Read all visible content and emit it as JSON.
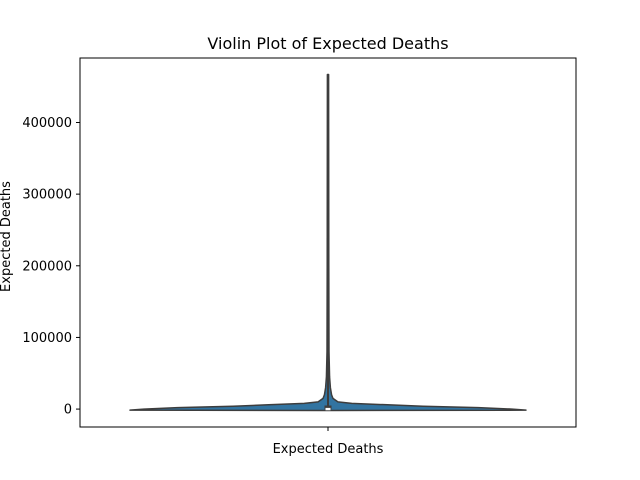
{
  "chart_data": {
    "type": "violin",
    "title": "Violin Plot of Expected Deaths",
    "xlabel": "",
    "ylabel": "Expected Deaths",
    "categories": [
      "Expected Deaths"
    ],
    "ylim": [
      -25000,
      490000
    ],
    "yticks": [
      0,
      100000,
      200000,
      300000,
      400000
    ],
    "ytick_labels": [
      "0",
      "100000",
      "200000",
      "300000",
      "400000"
    ],
    "grid": false,
    "series": [
      {
        "category": "Expected Deaths",
        "min": -1000,
        "q1": -500,
        "median": 0,
        "q3": 5000,
        "max": 467000,
        "density_profile": [
          {
            "y": -1500,
            "w": 1.0
          },
          {
            "y": 0,
            "w": 0.93
          },
          {
            "y": 2000,
            "w": 0.76
          },
          {
            "y": 4000,
            "w": 0.48
          },
          {
            "y": 6000,
            "w": 0.3
          },
          {
            "y": 8000,
            "w": 0.12
          },
          {
            "y": 10000,
            "w": 0.05
          },
          {
            "y": 15000,
            "w": 0.025
          },
          {
            "y": 20000,
            "w": 0.018
          },
          {
            "y": 30000,
            "w": 0.012
          },
          {
            "y": 45000,
            "w": 0.008
          },
          {
            "y": 80000,
            "w": 0.005
          },
          {
            "y": 200000,
            "w": 0.004
          },
          {
            "y": 467000,
            "w": 0.003
          }
        ]
      }
    ],
    "colors": {
      "fill": "#3274a1",
      "stroke": "#3d3d3d",
      "axis": "#000000"
    }
  }
}
